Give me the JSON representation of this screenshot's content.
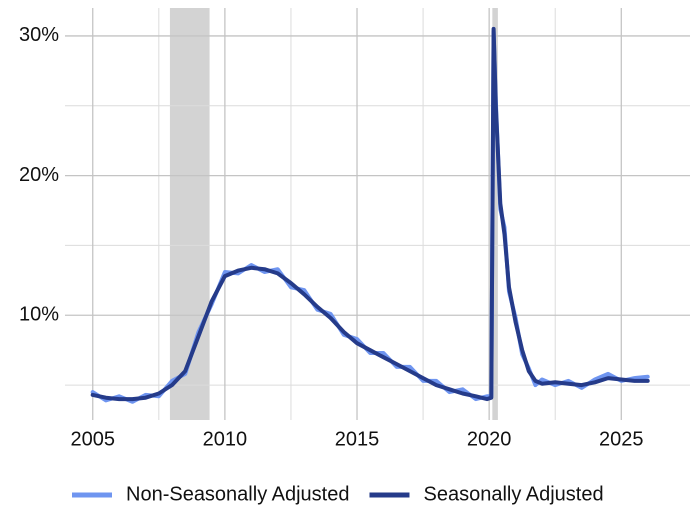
{
  "chart_data": {
    "type": "line",
    "x": [
      2005.0,
      2005.5,
      2006.0,
      2006.5,
      2007.0,
      2007.5,
      2008.0,
      2008.5,
      2009.0,
      2009.5,
      2010.0,
      2010.5,
      2011.0,
      2011.5,
      2012.0,
      2012.5,
      2013.0,
      2013.5,
      2014.0,
      2014.5,
      2015.0,
      2015.5,
      2016.0,
      2016.5,
      2017.0,
      2017.5,
      2018.0,
      2018.5,
      2019.0,
      2019.5,
      2019.92,
      2020.08,
      2020.17,
      2020.25,
      2020.42,
      2020.58,
      2020.75,
      2021.0,
      2021.25,
      2021.5,
      2021.75,
      2022.0,
      2022.5,
      2023.0,
      2023.5,
      2024.0,
      2024.5,
      2025.0,
      2025.5,
      2026.0
    ],
    "series": [
      {
        "name": "Non-Seasonally Adjusted",
        "color": "#6f95f0",
        "values": [
          4.5,
          3.9,
          4.2,
          3.8,
          4.3,
          4.2,
          5.3,
          5.8,
          8.8,
          10.8,
          13.1,
          13.0,
          13.6,
          13.1,
          13.3,
          12.0,
          11.8,
          10.4,
          10.1,
          8.6,
          8.3,
          7.3,
          7.3,
          6.3,
          6.3,
          5.3,
          5.3,
          4.5,
          4.7,
          4.0,
          4.2,
          4.2,
          30.3,
          25.4,
          17.6,
          16.3,
          11.7,
          9.8,
          7.2,
          6.2,
          5.0,
          5.4,
          5.0,
          5.3,
          4.8,
          5.4,
          5.8,
          5.3,
          5.5,
          5.6
        ]
      },
      {
        "name": "Seasonally Adjusted",
        "color": "#253b8a",
        "values": [
          4.3,
          4.1,
          4.0,
          4.0,
          4.1,
          4.4,
          5.0,
          6.0,
          8.5,
          11.0,
          12.8,
          13.2,
          13.4,
          13.3,
          13.0,
          12.3,
          11.5,
          10.6,
          9.8,
          8.8,
          8.0,
          7.5,
          7.0,
          6.5,
          6.0,
          5.5,
          5.0,
          4.7,
          4.4,
          4.2,
          4.0,
          4.1,
          30.5,
          25.0,
          18.0,
          15.8,
          12.0,
          9.5,
          7.5,
          6.0,
          5.3,
          5.1,
          5.2,
          5.1,
          5.0,
          5.2,
          5.5,
          5.4,
          5.3,
          5.3
        ]
      }
    ],
    "xlim": [
      2003.95,
      2027.6
    ],
    "xticks": [
      2005,
      2010,
      2015,
      2020,
      2025
    ],
    "x_minor_ticks": [
      2007.5,
      2012.5,
      2017.5,
      2022.5
    ],
    "ylim": [
      2.5,
      32
    ],
    "yticks": [
      {
        "value": 10,
        "label": "10%"
      },
      {
        "value": 20,
        "label": "20%"
      },
      {
        "value": 30,
        "label": "30%"
      }
    ],
    "y_minor_ticks": [
      5,
      15,
      25
    ],
    "shaded_regions": [
      [
        2007.92,
        2009.42
      ],
      [
        2020.12,
        2020.33
      ]
    ],
    "grid": true,
    "legend": "bottom"
  }
}
